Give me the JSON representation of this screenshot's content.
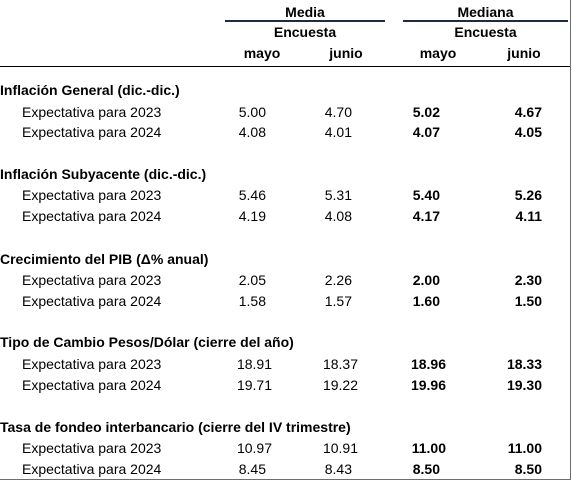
{
  "header": {
    "media": "Media",
    "mediana": "Mediana",
    "encuesta_media": "Encuesta",
    "encuesta_mediana": "Encuesta",
    "col_mayo": "mayo",
    "col_junio": "junio"
  },
  "sections": [
    {
      "title": "Inflación General (dic.-dic.)",
      "rows": [
        {
          "label": "Expectativa para 2023",
          "media_mayo": "5.00",
          "media_junio": "4.70",
          "mediana_mayo": "5.02",
          "mediana_junio": "4.67"
        },
        {
          "label": "Expectativa para 2024",
          "media_mayo": "4.08",
          "media_junio": "4.01",
          "mediana_mayo": "4.07",
          "mediana_junio": "4.05"
        }
      ]
    },
    {
      "title": "Inflación Subyacente (dic.-dic.)",
      "rows": [
        {
          "label": "Expectativa para 2023",
          "media_mayo": "5.46",
          "media_junio": "5.31",
          "mediana_mayo": "5.40",
          "mediana_junio": "5.26"
        },
        {
          "label": "Expectativa para 2024",
          "media_mayo": "4.19",
          "media_junio": "4.08",
          "mediana_mayo": "4.17",
          "mediana_junio": "4.11"
        }
      ]
    },
    {
      "title": "Crecimiento del PIB (Δ% anual)",
      "rows": [
        {
          "label": "Expectativa para 2023",
          "media_mayo": "2.05",
          "media_junio": "2.26",
          "mediana_mayo": "2.00",
          "mediana_junio": "2.30"
        },
        {
          "label": "Expectativa para 2024",
          "media_mayo": "1.58",
          "media_junio": "1.57",
          "mediana_mayo": "1.60",
          "mediana_junio": "1.50"
        }
      ]
    },
    {
      "title": "Tipo de Cambio Pesos/Dólar (cierre del año)",
      "rows": [
        {
          "label": "Expectativa para 2023",
          "media_mayo": "18.91",
          "media_junio": "18.37",
          "mediana_mayo": "18.96",
          "mediana_junio": "18.33"
        },
        {
          "label": "Expectativa para 2024",
          "media_mayo": "19.71",
          "media_junio": "19.22",
          "mediana_mayo": "19.96",
          "mediana_junio": "19.30"
        }
      ]
    },
    {
      "title": "Tasa de fondeo interbancario (cierre del IV trimestre)",
      "rows": [
        {
          "label": "Expectativa para 2023",
          "media_mayo": "10.97",
          "media_junio": "10.91",
          "mediana_mayo": "11.00",
          "mediana_junio": "11.00"
        },
        {
          "label": "Expectativa para 2024",
          "media_mayo": "8.45",
          "media_junio": "8.43",
          "mediana_mayo": "8.50",
          "mediana_junio": "8.50"
        }
      ]
    }
  ]
}
